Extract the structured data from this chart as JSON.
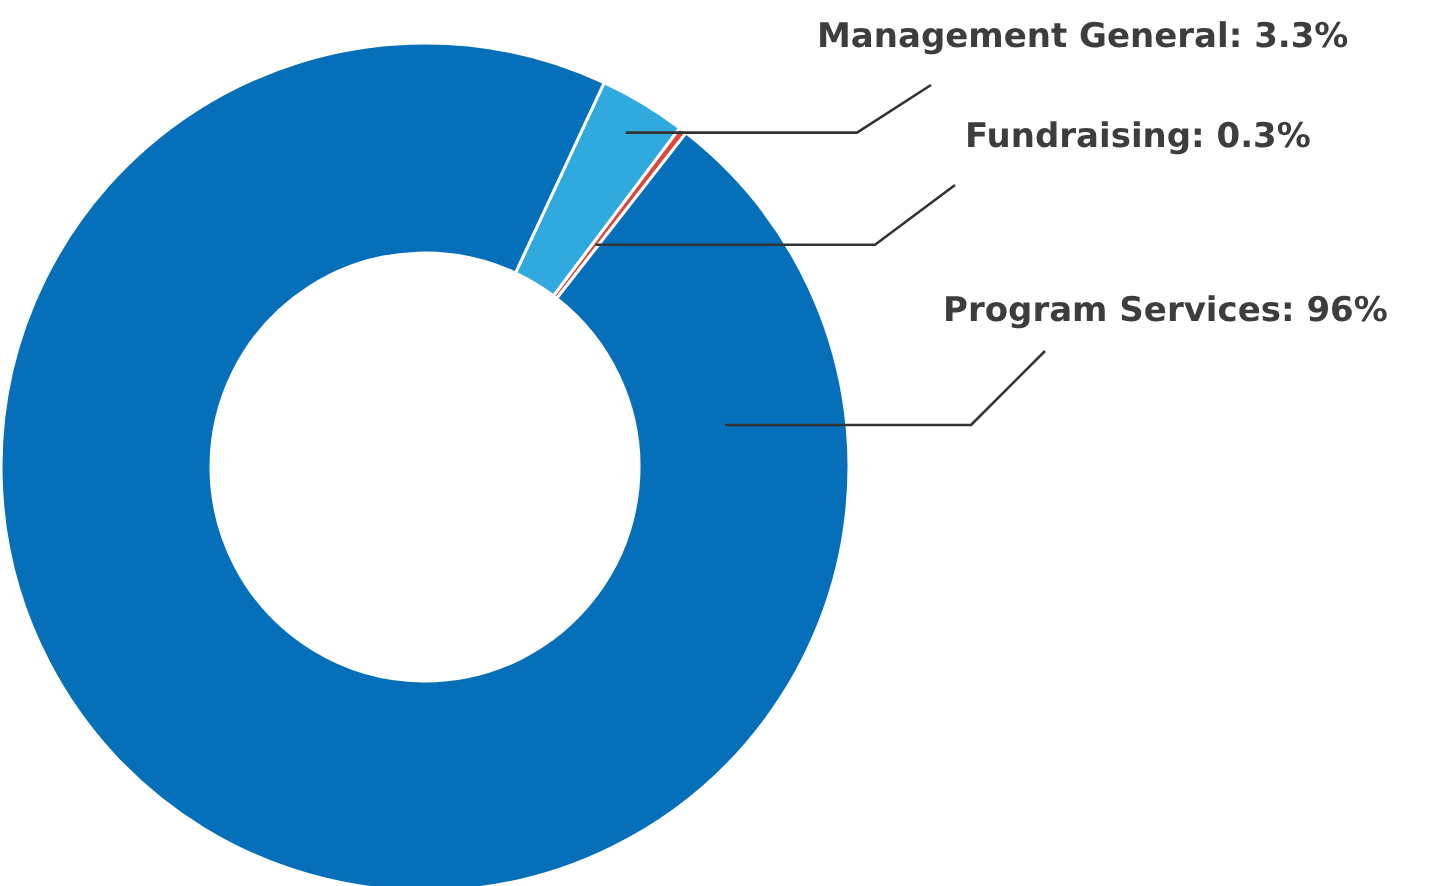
{
  "chart_data": {
    "type": "donut",
    "categories": [
      "Management General",
      "Fundraising",
      "Program Services"
    ],
    "values": [
      3.3,
      0.3,
      96
    ],
    "colors": [
      "#2fa9de",
      "#e0453a",
      "#0570b9"
    ],
    "value_labels": [
      "3.3%",
      "0.3%",
      "96%"
    ]
  }
}
